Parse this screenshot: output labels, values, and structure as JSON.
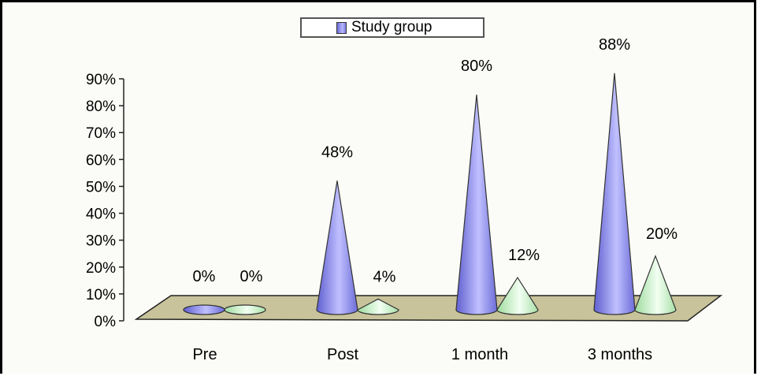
{
  "chart_data": {
    "type": "bar",
    "subtype": "3d-cone",
    "categories": [
      "Pre",
      "Post",
      "1 month",
      "3 months"
    ],
    "series": [
      {
        "name": "Study group",
        "values": [
          0,
          48,
          80,
          88
        ],
        "color": "#8c8cf2"
      },
      {
        "values": [
          0,
          4,
          12,
          20
        ],
        "color": "#ccf5cc"
      }
    ],
    "data_labels": [
      [
        "0%",
        "48%",
        "80%",
        "88%"
      ],
      [
        "0%",
        "4%",
        "12%",
        "20%"
      ]
    ],
    "y_ticks": [
      "0%",
      "10%",
      "20%",
      "30%",
      "40%",
      "50%",
      "60%",
      "70%",
      "80%",
      "90%"
    ],
    "ylim": [
      0,
      90
    ],
    "legend": {
      "position": "top",
      "label": "Study group"
    },
    "floor_color": "#c8c39a",
    "grid": false
  }
}
